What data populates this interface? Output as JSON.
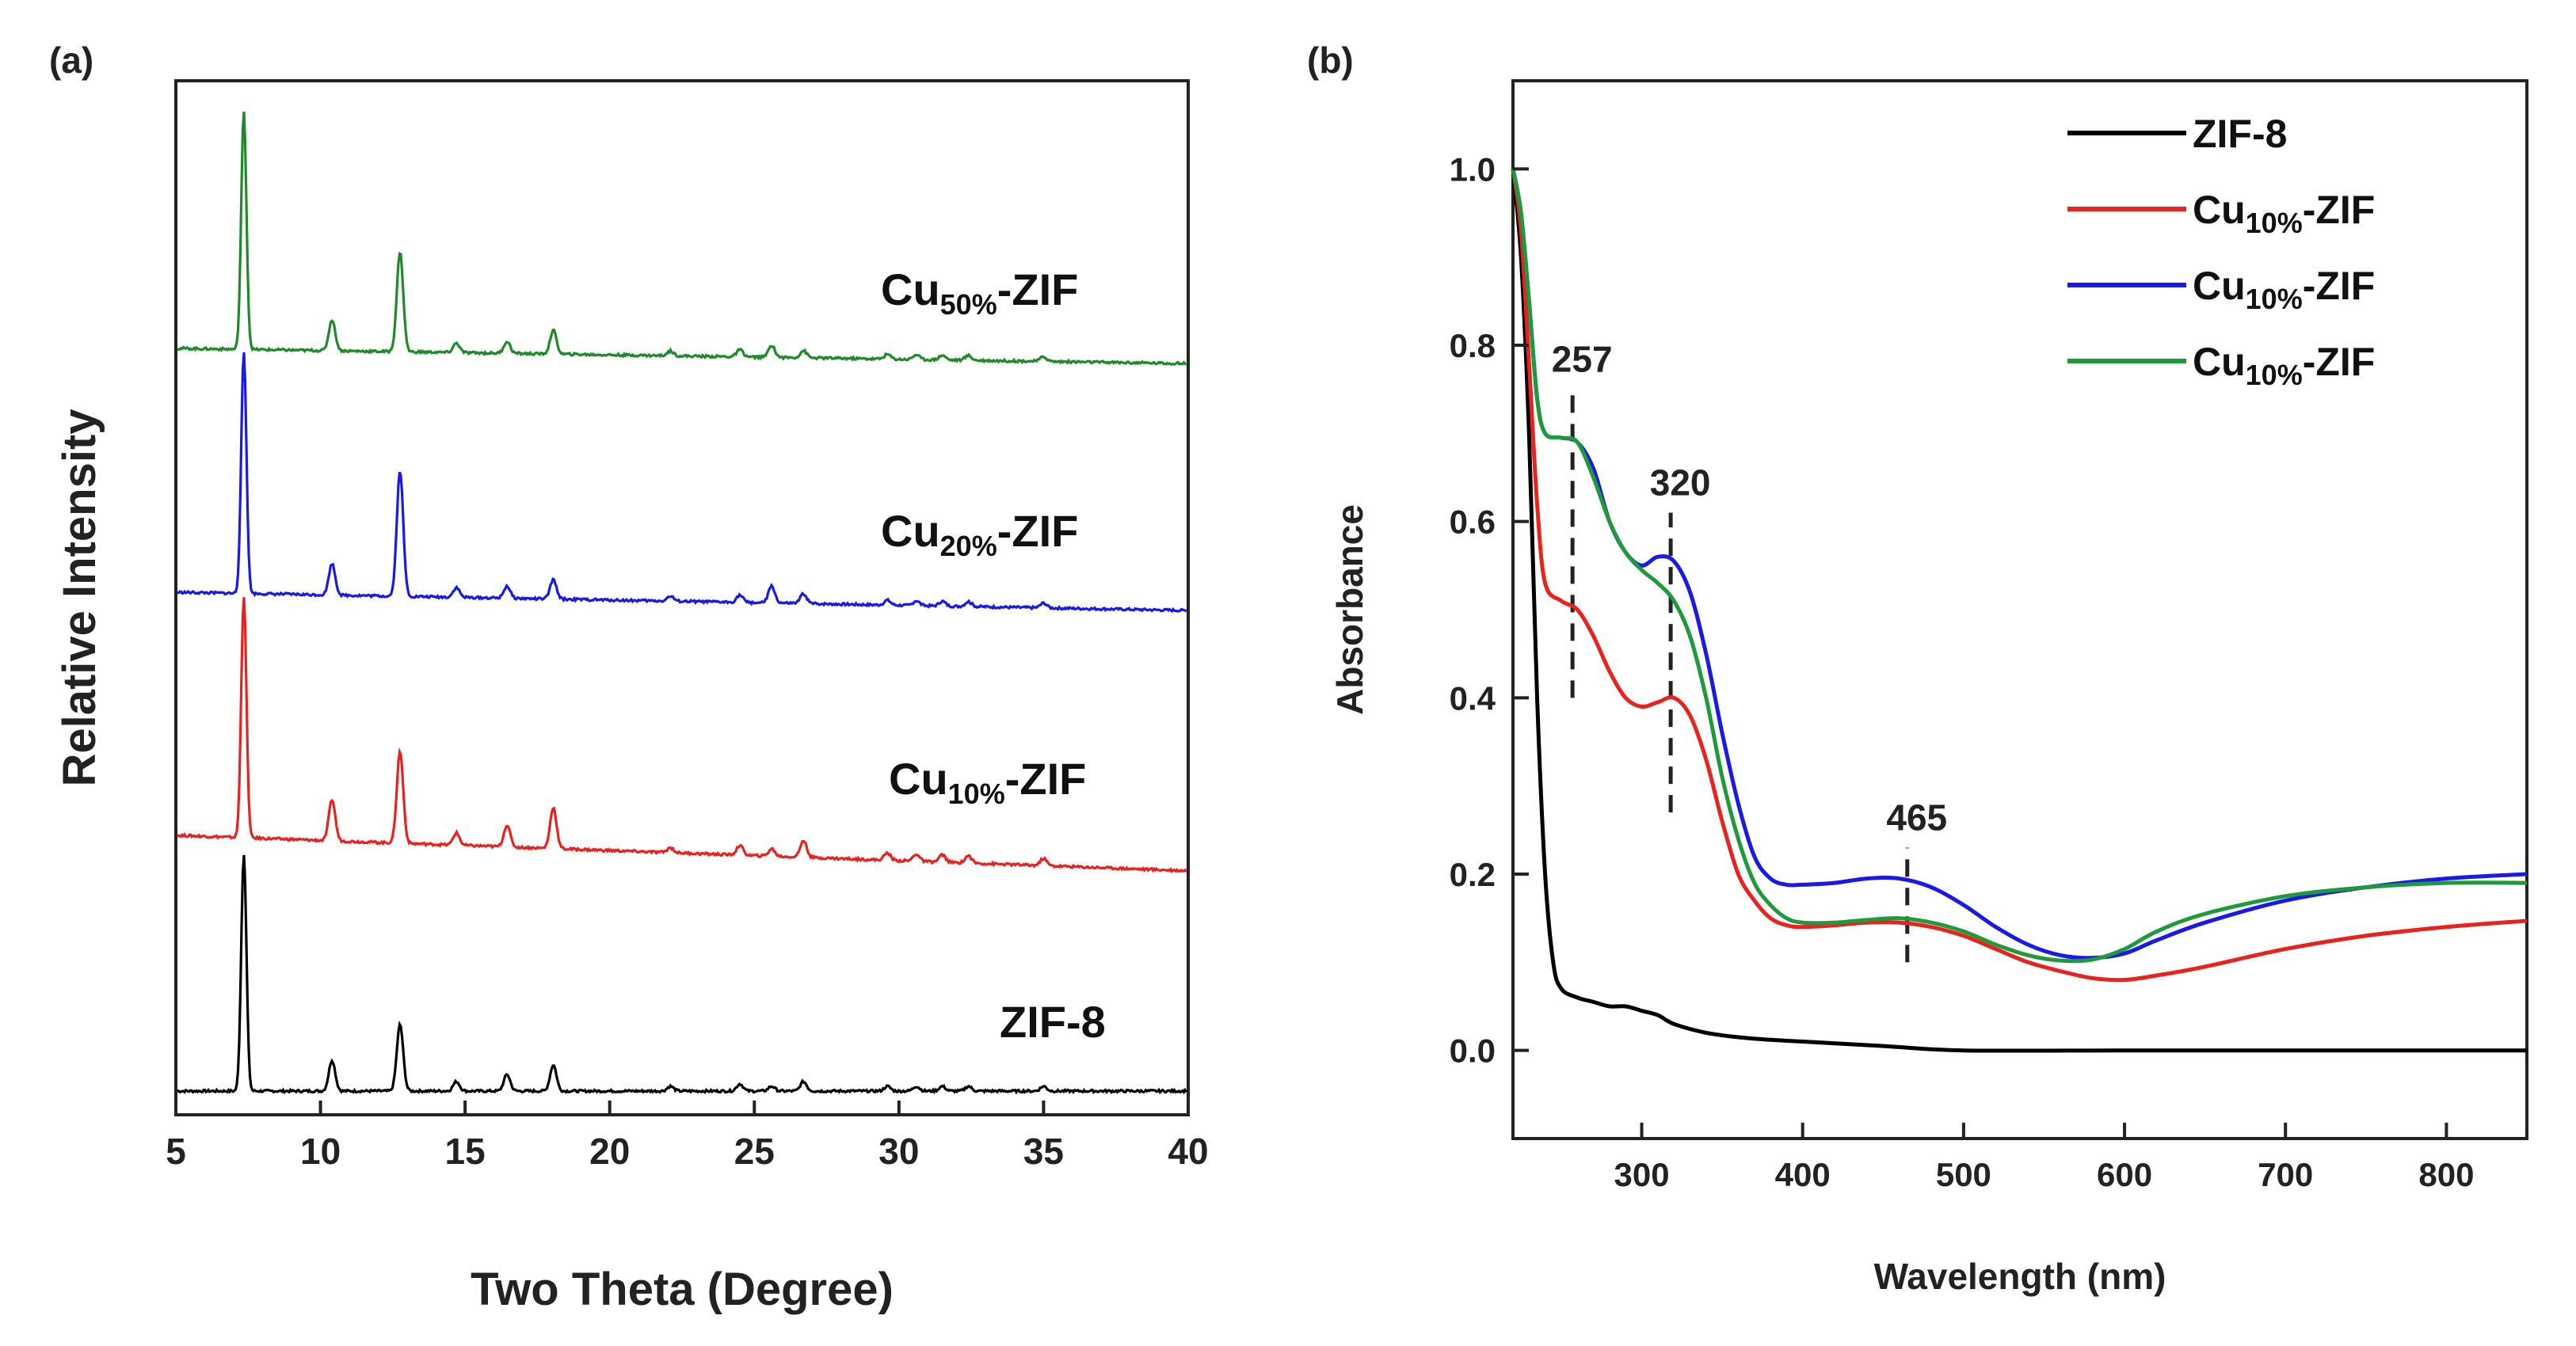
{
  "chart_data": [
    {
      "panel": "(a)",
      "type": "line",
      "xlabel": "Two Theta (Degree)",
      "ylabel": "Relative Intensity",
      "xlim": [
        5,
        40
      ],
      "x_ticks": [
        5,
        10,
        15,
        20,
        25,
        30,
        35,
        40
      ],
      "y_ticks": [],
      "peak_positions": [
        7.35,
        10.4,
        12.75,
        14.7,
        16.45,
        18.05,
        22.1,
        24.5,
        25.6,
        26.7,
        29.6,
        30.6,
        31.5,
        32.4,
        35.0
      ],
      "series": [
        {
          "name_main": "ZIF-8",
          "name_sub": "",
          "name_suffix": "",
          "color": "#000000",
          "offset": 0,
          "peak_heights": [
            1.0,
            0.13,
            0.28,
            0.04,
            0.07,
            0.11,
            0.02,
            0.03,
            0.02,
            0.04,
            0.02,
            0.02,
            0.02,
            0.02,
            0.02
          ]
        },
        {
          "name_main": "Cu",
          "name_sub": "10%",
          "name_suffix": "-ZIF",
          "color": "#e8221f",
          "offset": 1,
          "peak_heights": [
            1.0,
            0.17,
            0.38,
            0.05,
            0.09,
            0.17,
            0.02,
            0.04,
            0.03,
            0.07,
            0.03,
            0.03,
            0.03,
            0.03,
            0.03
          ]
        },
        {
          "name_main": "Cu",
          "name_sub": "20%",
          "name_suffix": "-ZIF",
          "color": "#1a1ae6",
          "offset": 2,
          "peak_heights": [
            1.0,
            0.13,
            0.52,
            0.04,
            0.05,
            0.08,
            0.02,
            0.03,
            0.07,
            0.04,
            0.02,
            0.02,
            0.02,
            0.02,
            0.02
          ]
        },
        {
          "name_main": "Cu",
          "name_sub": "50%",
          "name_suffix": "-ZIF",
          "color": "#1f8a2a",
          "offset": 3,
          "peak_heights": [
            1.0,
            0.13,
            0.42,
            0.04,
            0.05,
            0.1,
            0.02,
            0.03,
            0.05,
            0.03,
            0.02,
            0.02,
            0.02,
            0.02,
            0.02
          ]
        }
      ]
    },
    {
      "panel": "(b)",
      "type": "line",
      "xlabel": "Wavelength (nm)",
      "ylabel": "Absorbance",
      "xlim": [
        220,
        850
      ],
      "ylim": [
        -0.1,
        1.1
      ],
      "x_ticks": [
        300,
        400,
        500,
        600,
        700,
        800
      ],
      "y_ticks": [
        0.0,
        0.2,
        0.4,
        0.6,
        0.8,
        1.0
      ],
      "annotations": [
        {
          "text": "257",
          "x": 257,
          "y_from": 0.4,
          "y_to": 0.75
        },
        {
          "text": "320",
          "x": 318,
          "y_from": 0.27,
          "y_to": 0.61
        },
        {
          "text": "465",
          "x": 465,
          "y_from": 0.1,
          "y_to": 0.23
        }
      ],
      "series": [
        {
          "name_main": "ZIF-8",
          "name_sub": "",
          "name_suffix": "",
          "color": "#000000",
          "x": [
            220,
            225,
            230,
            235,
            240,
            245,
            250,
            260,
            270,
            280,
            290,
            300,
            310,
            320,
            340,
            360,
            380,
            400,
            450,
            500,
            600,
            700,
            850
          ],
          "y": [
            1.0,
            0.9,
            0.7,
            0.4,
            0.2,
            0.1,
            0.07,
            0.06,
            0.055,
            0.05,
            0.05,
            0.045,
            0.04,
            0.03,
            0.02,
            0.015,
            0.012,
            0.01,
            0.005,
            0.0,
            0.0,
            0.0,
            0.0
          ]
        },
        {
          "name_main": "Cu",
          "name_sub": "10%",
          "name_suffix": "-ZIF",
          "color": "#e8221f",
          "x": [
            220,
            225,
            230,
            235,
            240,
            250,
            260,
            270,
            280,
            290,
            300,
            310,
            320,
            330,
            340,
            350,
            360,
            370,
            380,
            390,
            400,
            420,
            440,
            460,
            480,
            500,
            520,
            540,
            560,
            580,
            600,
            620,
            650,
            700,
            750,
            800,
            850
          ],
          "y": [
            1.0,
            0.93,
            0.78,
            0.62,
            0.53,
            0.51,
            0.5,
            0.47,
            0.43,
            0.4,
            0.39,
            0.395,
            0.4,
            0.38,
            0.33,
            0.26,
            0.2,
            0.17,
            0.15,
            0.142,
            0.14,
            0.142,
            0.145,
            0.145,
            0.14,
            0.13,
            0.115,
            0.1,
            0.09,
            0.082,
            0.08,
            0.085,
            0.095,
            0.115,
            0.13,
            0.14,
            0.147
          ]
        },
        {
          "name_main": "Cu",
          "name_sub": "10%",
          "name_suffix": "-ZIF",
          "color": "#1a1ae6",
          "x": [
            220,
            225,
            230,
            235,
            240,
            250,
            260,
            270,
            280,
            290,
            300,
            310,
            320,
            330,
            340,
            350,
            360,
            370,
            380,
            390,
            400,
            420,
            440,
            460,
            480,
            500,
            520,
            540,
            560,
            580,
            600,
            620,
            650,
            700,
            750,
            800,
            850
          ],
          "y": [
            1.0,
            0.95,
            0.85,
            0.74,
            0.7,
            0.695,
            0.69,
            0.66,
            0.6,
            0.565,
            0.55,
            0.56,
            0.555,
            0.52,
            0.45,
            0.36,
            0.28,
            0.22,
            0.195,
            0.188,
            0.188,
            0.19,
            0.195,
            0.195,
            0.185,
            0.165,
            0.14,
            0.12,
            0.108,
            0.105,
            0.11,
            0.125,
            0.145,
            0.17,
            0.185,
            0.195,
            0.2
          ]
        },
        {
          "name_main": "Cu",
          "name_sub": "10%",
          "name_suffix": "-ZIF",
          "color": "#1f9a3a",
          "x": [
            220,
            225,
            230,
            235,
            240,
            250,
            260,
            270,
            280,
            290,
            300,
            310,
            320,
            330,
            340,
            350,
            360,
            370,
            380,
            390,
            400,
            420,
            440,
            460,
            480,
            500,
            520,
            540,
            560,
            580,
            600,
            620,
            650,
            700,
            750,
            800,
            850
          ],
          "y": [
            1.0,
            0.95,
            0.85,
            0.74,
            0.7,
            0.695,
            0.69,
            0.65,
            0.6,
            0.565,
            0.545,
            0.53,
            0.51,
            0.47,
            0.4,
            0.31,
            0.24,
            0.19,
            0.165,
            0.15,
            0.145,
            0.145,
            0.148,
            0.15,
            0.145,
            0.135,
            0.12,
            0.108,
            0.102,
            0.103,
            0.115,
            0.135,
            0.155,
            0.175,
            0.185,
            0.19,
            0.19
          ]
        }
      ]
    }
  ]
}
